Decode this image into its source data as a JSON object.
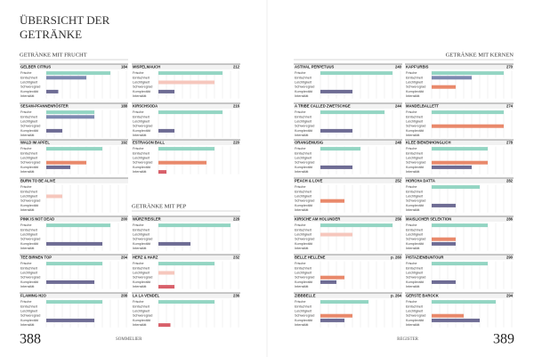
{
  "title_lines": [
    "ÜBERSICHT DER",
    "GETRÄNKE"
  ],
  "scale": [
    0,
    10
  ],
  "attributes": [
    {
      "name": "Frische",
      "color": "#93d5c3"
    },
    {
      "name": "Einfachheit",
      "color": "#7d89b0"
    },
    {
      "name": "Leichtigkeit",
      "color": "#f6c7bd"
    },
    {
      "name": "Schweregrad",
      "color": "#e9896b"
    },
    {
      "name": "Komplexität",
      "color": "#6e6c94"
    },
    {
      "name": "Intensität",
      "color": "#d8606a"
    }
  ],
  "sections": [
    {
      "title": "GETRÄNKE MIT FRUCHT",
      "cards": [
        {
          "name": "GELBER CITRUS",
          "page": 184,
          "values": [
            8,
            5,
            null,
            null,
            1.5,
            null
          ]
        },
        {
          "name": "SESAM-PFANNENRÖSTER",
          "page": 188,
          "values": [
            6,
            6,
            null,
            null,
            2,
            null
          ]
        },
        {
          "name": "WALD IM APFEL",
          "page": 192,
          "values": [
            7,
            null,
            null,
            5,
            3,
            null
          ]
        },
        {
          "name": "BURN TO BE ALIVE",
          "values": [
            null,
            null,
            2,
            null,
            null,
            null
          ]
        },
        {
          "name": "PINK IS NOT DEAD",
          "page": 200,
          "values": [
            8,
            null,
            null,
            null,
            7,
            null
          ]
        },
        {
          "name": "TEE BIRNEN TOP",
          "page": 204,
          "values": [
            7,
            null,
            null,
            null,
            6,
            null
          ]
        },
        {
          "name": "FLAMING H2O",
          "page": 208,
          "values": [
            7,
            null,
            null,
            null,
            6,
            null
          ]
        },
        {
          "name": "MISPELMAUCH",
          "page": 212,
          "values": [
            8,
            null,
            7,
            null,
            2,
            null
          ]
        },
        {
          "name": "KIRSCHSODA",
          "page": 216,
          "values": [
            8,
            null,
            null,
            null,
            2,
            null
          ]
        },
        {
          "name": "ESTRAGON BALL",
          "page": 220,
          "values": [
            7,
            null,
            null,
            6,
            null,
            1
          ]
        }
      ]
    },
    {
      "title": "GETRÄNKE MIT PEP",
      "cards": [
        {
          "name": "WÜRZ'REISLER",
          "page": 228,
          "values": [
            9,
            null,
            null,
            null,
            4,
            null
          ]
        },
        {
          "name": "HERZ & HARZ",
          "page": 232,
          "values": [
            7,
            null,
            2,
            null,
            null,
            2
          ]
        },
        {
          "name": "LA LA VENDEL",
          "page": 236,
          "values": [
            7,
            null,
            null,
            null,
            null,
            1.5
          ]
        }
      ]
    },
    {
      "title": "GETRÄNKE MIT KERNEN",
      "cards": [
        {
          "name": "ASTIVAL PERPETUUS",
          "page": 240,
          "values": [
            9,
            null,
            null,
            null,
            4,
            null
          ]
        },
        {
          "name": "A TRIBE CALLED ZWETSCHGE",
          "page": 244,
          "values": [
            8,
            null,
            null,
            null,
            4,
            null
          ]
        },
        {
          "name": "ORANGEMUSIG",
          "page": 248,
          "values": [
            5,
            null,
            null,
            null,
            4,
            null
          ]
        },
        {
          "name": "PEACH & LOVE",
          "page": 252,
          "values": [
            null,
            null,
            null,
            3,
            null,
            null
          ]
        },
        {
          "name": "KIRSCHE AM HOLUNDER",
          "page": 256,
          "values": [
            9,
            null,
            4,
            null,
            null,
            null
          ]
        },
        {
          "name": "BELLE HELLÈNE",
          "page": "p. 260",
          "values": [
            null,
            null,
            null,
            3,
            2,
            null
          ]
        },
        {
          "name": "ZIBBBELLE",
          "page": "p. 264",
          "values": [
            6,
            null,
            null,
            4,
            3,
            null
          ]
        },
        {
          "name": "KAPF'URBIS",
          "page": 270,
          "values": [
            9,
            5,
            null,
            3,
            null,
            null
          ]
        },
        {
          "name": "MANDELBALLETT",
          "page": 274,
          "values": [
            9,
            null,
            null,
            9,
            null,
            null
          ]
        },
        {
          "name": "KLEE BIENENHONGLICH",
          "page": 278,
          "values": [
            7,
            null,
            null,
            7,
            5,
            null
          ]
        },
        {
          "name": "HORCHA DATTA",
          "page": 282,
          "values": [
            6,
            null,
            null,
            null,
            3,
            null
          ]
        },
        {
          "name": "MAISLICHER SELEKTION",
          "page": 286,
          "values": [
            7,
            null,
            null,
            3,
            3,
            null
          ]
        },
        {
          "name": "PISTAZIENBUNTOUR",
          "page": 290,
          "values": [
            7,
            null,
            null,
            null,
            3,
            null
          ]
        },
        {
          "name": "GERSTE BAROCK",
          "page": 294,
          "values": [
            8,
            null,
            null,
            4,
            6,
            null
          ]
        }
      ]
    }
  ],
  "footer": {
    "left_page": "388",
    "left_label": "SOMMELIER",
    "right_label": "REGISTER",
    "right_page": "389"
  }
}
